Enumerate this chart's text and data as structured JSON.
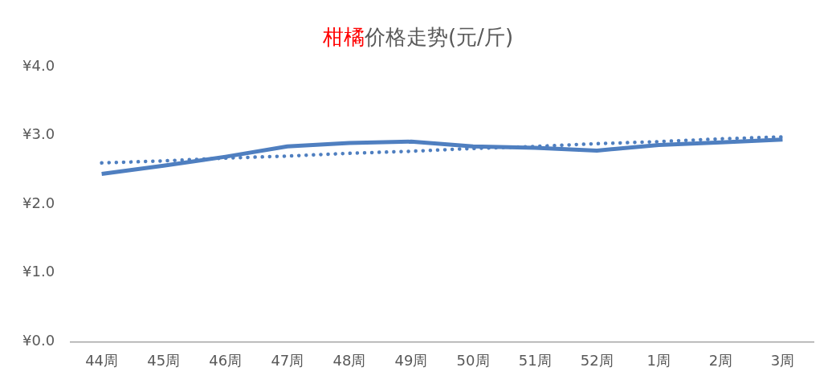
{
  "chart_data": {
    "type": "line",
    "title": "柑橘价格走势(元/斤)",
    "categories": [
      "44周",
      "45周",
      "46周",
      "47周",
      "48周",
      "49周",
      "50周",
      "51周",
      "52周",
      "1周",
      "2周",
      "3周"
    ],
    "series": [
      {
        "color": "#4f7fc0",
        "values": [
          2.44,
          2.56,
          2.69,
          2.84,
          2.89,
          2.91,
          2.84,
          2.82,
          2.78,
          2.86,
          2.9,
          2.94
        ],
        "line_style": "solid"
      },
      {
        "color": "#4f7fc0",
        "values": [
          2.6,
          2.63,
          2.67,
          2.7,
          2.74,
          2.77,
          2.81,
          2.84,
          2.88,
          2.91,
          2.95,
          2.98
        ],
        "line_style": "dotted"
      }
    ],
    "ylim": [
      0,
      4
    ],
    "yticks": [
      {
        "value": 0,
        "label": "¥0.0"
      },
      {
        "value": 1,
        "label": "¥1.0"
      },
      {
        "value": 2,
        "label": "¥2.0"
      },
      {
        "value": 3,
        "label": "¥3.0"
      },
      {
        "value": 4,
        "label": "¥4.0"
      }
    ],
    "grid": false,
    "legend": false,
    "marker": "none"
  }
}
